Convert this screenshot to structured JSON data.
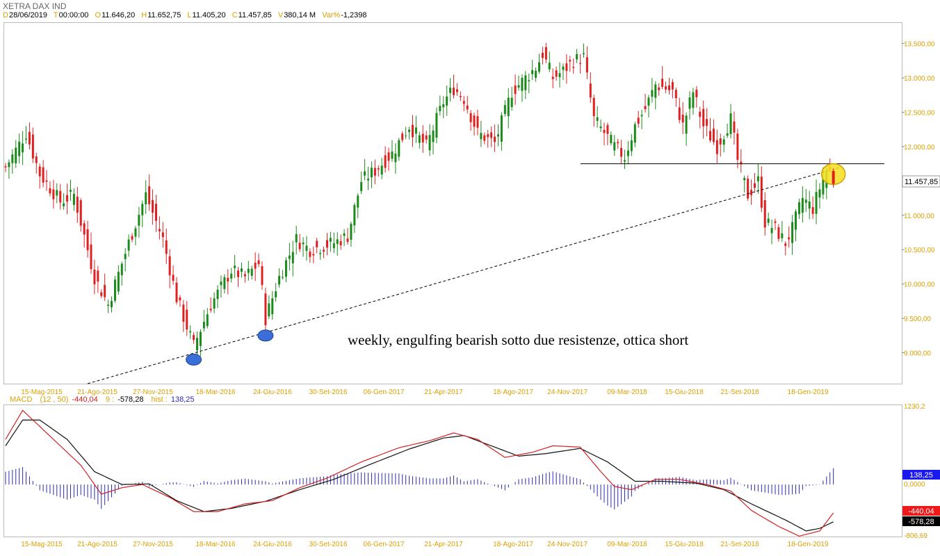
{
  "header": {
    "instrument": "XETRA DAX IND",
    "fields": [
      {
        "key": "D",
        "value": "28/06/2019"
      },
      {
        "key": "T",
        "value": "00:00:00"
      },
      {
        "key": "O",
        "value": "11.646,20"
      },
      {
        "key": "H",
        "value": "11.652,75"
      },
      {
        "key": "L",
        "value": "11.405,20"
      },
      {
        "key": "C",
        "value": "11.457,85"
      },
      {
        "key": "V",
        "value": "380,14 M"
      },
      {
        "key": "Var%",
        "value": "-1,2398"
      }
    ]
  },
  "macd_header": {
    "name": "MACD",
    "params": "(12 , 50)",
    "macd_value": "-440,04",
    "signal_label": "9 :",
    "signal_value": "-578,28",
    "hist_label": "hist :",
    "hist_value": "138,25"
  },
  "colors": {
    "up": "#1a8a1a",
    "down": "#e02020",
    "macd_line": "#d42020",
    "signal_line": "#111111",
    "histogram": "#2a2ab0",
    "axis_text": "#d9a100",
    "pivot_marker": "#3a6fd8",
    "highlight": "#f4e020"
  },
  "annotation": "weekly, engulfing bearish sotto due resistenze, ottica short",
  "price_axis": {
    "ticks": [
      "13.500,00",
      "13.000,00",
      "12.500,00",
      "12.000,00",
      "11.000,00",
      "10.500,00",
      "10.000,00",
      "9.500,00",
      "9.000,00"
    ],
    "tick_values": [
      13500,
      13000,
      12500,
      12000,
      11000,
      10500,
      10000,
      9500,
      9000
    ],
    "last_price_label": "11.457,85",
    "last_price": 11457.85,
    "range": [
      8550,
      13800
    ]
  },
  "macd_axis": {
    "top": "1230,2",
    "zero": "0,0000",
    "bottom": "-806,69",
    "hist_badge": "138,25",
    "macd_badge": "-440,04",
    "signal_badge": "-578,28",
    "range": [
      -806.69,
      1230.2
    ]
  },
  "time_axis": [
    "15-Mag-2015",
    "21-Ago-2015",
    "27-Nov-2015",
    "18-Mar-2016",
    "24-Giu-2016",
    "30-Set-2016",
    "06-Gen-2017",
    "21-Apr-2017",
    "18-Ago-2017",
    "24-Nov-2017",
    "09-Mar-2018",
    "15-Giu-2018",
    "21-Set-2018",
    "18-Gen-2019"
  ],
  "chart_data": {
    "type": "candlestick",
    "frequency": "weekly",
    "title": "XETRA DAX IND",
    "ylim": [
      8550,
      13800
    ],
    "anchors": [
      {
        "week": 0,
        "close": 11700
      },
      {
        "week": 6,
        "close": 12200
      },
      {
        "week": 10,
        "close": 11600
      },
      {
        "week": 16,
        "close": 11200
      },
      {
        "week": 20,
        "close": 11300
      },
      {
        "week": 26,
        "close": 10100
      },
      {
        "week": 30,
        "close": 9700
      },
      {
        "week": 36,
        "close": 10600
      },
      {
        "week": 41,
        "close": 11300
      },
      {
        "week": 46,
        "close": 10650
      },
      {
        "week": 50,
        "close": 9800
      },
      {
        "week": 55,
        "close": 9100
      },
      {
        "week": 60,
        "close": 9700
      },
      {
        "week": 66,
        "close": 10200
      },
      {
        "week": 70,
        "close": 10100
      },
      {
        "week": 74,
        "close": 10300
      },
      {
        "week": 76,
        "close": 9500
      },
      {
        "week": 80,
        "close": 10100
      },
      {
        "week": 85,
        "close": 10650
      },
      {
        "week": 89,
        "close": 10500
      },
      {
        "week": 96,
        "close": 10600
      },
      {
        "week": 100,
        "close": 10700
      },
      {
        "week": 104,
        "close": 11500
      },
      {
        "week": 108,
        "close": 11650
      },
      {
        "week": 113,
        "close": 11900
      },
      {
        "week": 118,
        "close": 12300
      },
      {
        "week": 123,
        "close": 12000
      },
      {
        "week": 128,
        "close": 12650
      },
      {
        "week": 131,
        "close": 12850
      },
      {
        "week": 134,
        "close": 12700
      },
      {
        "week": 138,
        "close": 12200
      },
      {
        "week": 143,
        "close": 12050
      },
      {
        "week": 148,
        "close": 12800
      },
      {
        "week": 155,
        "close": 13150
      },
      {
        "week": 157,
        "close": 13350
      },
      {
        "week": 160,
        "close": 13000
      },
      {
        "week": 163,
        "close": 13100
      },
      {
        "week": 166,
        "close": 13250
      },
      {
        "week": 169,
        "close": 13300
      },
      {
        "week": 172,
        "close": 12400
      },
      {
        "week": 175,
        "close": 12200
      },
      {
        "week": 178,
        "close": 12000
      },
      {
        "week": 181,
        "close": 11850
      },
      {
        "week": 184,
        "close": 12300
      },
      {
        "week": 187,
        "close": 12550
      },
      {
        "week": 190,
        "close": 12900
      },
      {
        "week": 193,
        "close": 12850
      },
      {
        "week": 195,
        "close": 12800
      },
      {
        "week": 198,
        "close": 12300
      },
      {
        "week": 201,
        "close": 12800
      },
      {
        "week": 204,
        "close": 12300
      },
      {
        "week": 208,
        "close": 12000
      },
      {
        "week": 212,
        "close": 12400
      },
      {
        "week": 214,
        "close": 11800
      },
      {
        "week": 217,
        "close": 11300
      },
      {
        "week": 220,
        "close": 11500
      },
      {
        "week": 222,
        "close": 10900
      },
      {
        "week": 225,
        "close": 10800
      },
      {
        "week": 228,
        "close": 10600
      },
      {
        "week": 230,
        "close": 10800
      },
      {
        "week": 233,
        "close": 11250
      },
      {
        "week": 236,
        "close": 11100
      },
      {
        "week": 238,
        "close": 11400
      },
      {
        "week": 240,
        "close": 11650
      },
      {
        "week": 241,
        "close": 11650
      },
      {
        "week": 242,
        "close": 11457.85
      }
    ],
    "last_bar": {
      "open": 11646.2,
      "high": 11652.75,
      "low": 11405.2,
      "close": 11457.85
    },
    "horizontal_resistance": 11750,
    "trendline": [
      {
        "week": 24,
        "price": 8550
      },
      {
        "week": 244,
        "price": 11700
      }
    ],
    "pivot_lows": [
      {
        "week": 55,
        "price": 8900
      },
      {
        "week": 76,
        "price": 9250
      }
    ],
    "highlight": {
      "week": 242,
      "price": 11600
    },
    "macd": {
      "params": [
        12,
        50,
        9
      ],
      "last_macd": -440.04,
      "last_signal": -578.28,
      "last_hist": 138.25,
      "macd_anchors": [
        {
          "week": 0,
          "value": 700
        },
        {
          "week": 5,
          "value": 1150
        },
        {
          "week": 10,
          "value": 900
        },
        {
          "week": 16,
          "value": 600
        },
        {
          "week": 22,
          "value": 300
        },
        {
          "week": 28,
          "value": -150
        },
        {
          "week": 34,
          "value": -50
        },
        {
          "week": 40,
          "value": 0
        },
        {
          "week": 48,
          "value": -200
        },
        {
          "week": 55,
          "value": -420
        },
        {
          "week": 62,
          "value": -420
        },
        {
          "week": 70,
          "value": -300
        },
        {
          "week": 78,
          "value": -250
        },
        {
          "week": 86,
          "value": -50
        },
        {
          "week": 94,
          "value": 100
        },
        {
          "week": 104,
          "value": 350
        },
        {
          "week": 115,
          "value": 570
        },
        {
          "week": 124,
          "value": 680
        },
        {
          "week": 131,
          "value": 800
        },
        {
          "week": 138,
          "value": 700
        },
        {
          "week": 146,
          "value": 420
        },
        {
          "week": 154,
          "value": 500
        },
        {
          "week": 160,
          "value": 600
        },
        {
          "week": 168,
          "value": 580
        },
        {
          "week": 174,
          "value": 200
        },
        {
          "week": 178,
          "value": -30
        },
        {
          "week": 183,
          "value": -80
        },
        {
          "week": 190,
          "value": 80
        },
        {
          "week": 197,
          "value": 80
        },
        {
          "week": 205,
          "value": 0
        },
        {
          "week": 212,
          "value": -100
        },
        {
          "week": 218,
          "value": -400
        },
        {
          "week": 226,
          "value": -650
        },
        {
          "week": 232,
          "value": -800
        },
        {
          "week": 238,
          "value": -720
        },
        {
          "week": 242,
          "value": -440.04
        }
      ],
      "signal_anchors": [
        {
          "week": 0,
          "value": 600
        },
        {
          "week": 5,
          "value": 1000
        },
        {
          "week": 10,
          "value": 1000
        },
        {
          "week": 18,
          "value": 700
        },
        {
          "week": 26,
          "value": 200
        },
        {
          "week": 34,
          "value": 0
        },
        {
          "week": 42,
          "value": 10
        },
        {
          "week": 50,
          "value": -250
        },
        {
          "week": 58,
          "value": -420
        },
        {
          "week": 66,
          "value": -370
        },
        {
          "week": 76,
          "value": -260
        },
        {
          "week": 86,
          "value": -80
        },
        {
          "week": 96,
          "value": 80
        },
        {
          "week": 106,
          "value": 300
        },
        {
          "week": 118,
          "value": 550
        },
        {
          "week": 128,
          "value": 720
        },
        {
          "week": 134,
          "value": 760
        },
        {
          "week": 142,
          "value": 600
        },
        {
          "week": 150,
          "value": 440
        },
        {
          "week": 158,
          "value": 480
        },
        {
          "week": 168,
          "value": 560
        },
        {
          "week": 176,
          "value": 350
        },
        {
          "week": 184,
          "value": 50
        },
        {
          "week": 192,
          "value": 50
        },
        {
          "week": 202,
          "value": 20
        },
        {
          "week": 210,
          "value": -80
        },
        {
          "week": 218,
          "value": -300
        },
        {
          "week": 228,
          "value": -550
        },
        {
          "week": 234,
          "value": -720
        },
        {
          "week": 238,
          "value": -680
        },
        {
          "week": 242,
          "value": -578.28
        }
      ]
    }
  }
}
